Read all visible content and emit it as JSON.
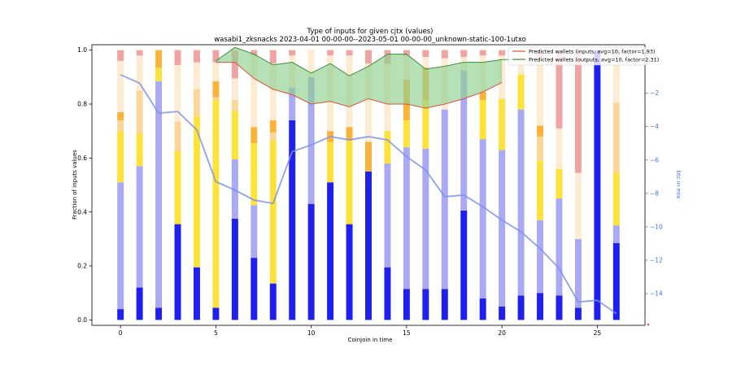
{
  "chart_data": {
    "type": "bar",
    "title": "Type of inputs for given cjtx (values)",
    "subtitle": "wasabi1_zksnacks 2023-04-01 00-00-00--2023-05-01 00-00-00_unknown-static-100-1utxo",
    "xlabel": "Coinjoin in time",
    "ylabel": "Fraction of inputs values",
    "y2label": "btc in mix",
    "xlim": [
      -1.5,
      27.5
    ],
    "ylim": [
      -0.02,
      1.02
    ],
    "y2lim": [
      -15.9,
      0.9
    ],
    "x_ticks": [
      0,
      5,
      10,
      15,
      20,
      25
    ],
    "y_ticks": [
      0.0,
      0.2,
      0.4,
      0.6,
      0.8,
      1.0
    ],
    "y2_ticks": [
      -14,
      -12,
      -10,
      -8,
      -6,
      -4,
      -2
    ],
    "x": [
      0,
      1,
      2,
      3,
      4,
      5,
      6,
      7,
      8,
      9,
      10,
      11,
      12,
      13,
      14,
      15,
      16,
      17,
      18,
      19,
      20,
      21,
      22,
      23,
      24,
      25,
      26
    ],
    "stack_colors": [
      "#1f1ff0",
      "#aaaaf4",
      "#fce23a",
      "#fbd69a",
      "#fbb23a",
      "#fdebd3",
      "#f0a3a3"
    ],
    "stacks": [
      [
        0.04,
        0.47,
        0.19,
        0.04,
        0.03,
        0.19,
        0.04
      ],
      [
        0.12,
        0.45,
        0.12,
        0.16,
        0.0,
        0.13,
        0.02
      ],
      [
        0.045,
        0.84,
        0.05,
        0.0,
        0.065,
        0.0,
        0.0
      ],
      [
        0.355,
        0.0,
        0.27,
        0.11,
        0.0,
        0.21,
        0.055
      ],
      [
        0.195,
        0.0,
        0.56,
        0.1,
        0.0,
        0.1,
        0.045
      ],
      [
        0.045,
        0.0,
        0.77,
        0.01,
        0.06,
        0.07,
        0.045
      ],
      [
        0.375,
        0.22,
        0.18,
        0.04,
        0.0,
        0.08,
        0.105
      ],
      [
        0.23,
        0.195,
        0.23,
        0.0,
        0.06,
        0.265,
        0.02
      ],
      [
        0.135,
        0.0,
        0.53,
        0.03,
        0.045,
        0.21,
        0.05
      ],
      [
        0.74,
        0.12,
        0.0,
        0.0,
        0.0,
        0.12,
        0.02
      ],
      [
        0.43,
        0.47,
        0.0,
        0.0,
        0.0,
        0.1,
        0.0
      ],
      [
        0.51,
        0.0,
        0.15,
        0.0,
        0.04,
        0.28,
        0.02
      ],
      [
        0.355,
        0.0,
        0.31,
        0.0,
        0.05,
        0.265,
        0.02
      ],
      [
        0.55,
        0.0,
        0.0,
        0.0,
        0.11,
        0.29,
        0.05
      ],
      [
        0.195,
        0.385,
        0.12,
        0.0,
        0.0,
        0.25,
        0.05
      ],
      [
        0.115,
        0.525,
        0.1,
        0.0,
        0.15,
        0.09,
        0.02
      ],
      [
        0.115,
        0.52,
        0.18,
        0.0,
        0.12,
        0.04,
        0.025
      ],
      [
        0.115,
        0.665,
        0.0,
        0.0,
        0.0,
        0.19,
        0.03
      ],
      [
        0.405,
        0.52,
        0.0,
        0.0,
        0.0,
        0.05,
        0.025
      ],
      [
        0.08,
        0.59,
        0.145,
        0.0,
        0.03,
        0.135,
        0.02
      ],
      [
        0.05,
        0.58,
        0.19,
        0.0,
        0.0,
        0.16,
        0.02
      ],
      [
        0.09,
        0.69,
        0.13,
        0.0,
        0.0,
        0.09,
        0.0
      ],
      [
        0.1,
        0.27,
        0.22,
        0.09,
        0.04,
        0.25,
        0.03
      ],
      [
        0.09,
        0.36,
        0.11,
        0.0,
        0.0,
        0.15,
        0.29
      ],
      [
        0.045,
        0.255,
        0.0,
        0.0,
        0.0,
        0.245,
        0.455
      ],
      [
        1.0,
        0.0,
        0.0,
        0.0,
        0.0,
        0.0,
        0.0
      ],
      [
        0.285,
        0.065,
        0.195,
        0.26,
        0.0,
        0.17,
        0.025
      ]
    ],
    "btc_in_mix": {
      "x": [
        0,
        1,
        2,
        3,
        4,
        5,
        6,
        7,
        8,
        9,
        10,
        11,
        12,
        13,
        14,
        15,
        16,
        17,
        18,
        19,
        20,
        21,
        22,
        23,
        24,
        25,
        26
      ],
      "values": [
        -0.9,
        -1.4,
        -3.2,
        -3.1,
        -4.2,
        -7.3,
        -7.8,
        -8.4,
        -8.6,
        -5.5,
        -5.1,
        -4.6,
        -4.8,
        -4.6,
        -4.8,
        -5.8,
        -6.6,
        -8.2,
        -8.1,
        -8.8,
        -9.6,
        -10.3,
        -11.3,
        -12.5,
        -14.5,
        -14.4,
        -15.2
      ],
      "color": "#7b93e8"
    },
    "predicted_inputs": {
      "label": "Predicted wallets (inputs, avg=10, factor=1.93)",
      "color": "#d9533b",
      "x": [
        5,
        6,
        7,
        8,
        9,
        10,
        11,
        12,
        13,
        14,
        15,
        16,
        17,
        18,
        19,
        20
      ],
      "values": [
        0.955,
        0.955,
        0.895,
        0.855,
        0.835,
        0.8,
        0.81,
        0.79,
        0.82,
        0.8,
        0.8,
        0.785,
        0.8,
        0.82,
        0.845,
        0.88
      ]
    },
    "predicted_outputs": {
      "label": "Predicted wallets (outputs, avg=10, factor=2.31)",
      "color": "#3a8f3a",
      "fill": "#8fcf8f",
      "x": [
        5,
        6,
        7,
        8,
        9,
        10,
        11,
        12,
        13,
        14,
        15,
        16,
        17,
        18,
        19,
        20,
        21
      ],
      "values": [
        0.96,
        1.01,
        0.985,
        0.945,
        0.955,
        0.915,
        0.95,
        0.905,
        0.94,
        0.985,
        0.985,
        0.93,
        0.94,
        0.955,
        0.955,
        0.965,
        0.965
      ]
    },
    "legend_position": "top-right",
    "grid": false
  }
}
